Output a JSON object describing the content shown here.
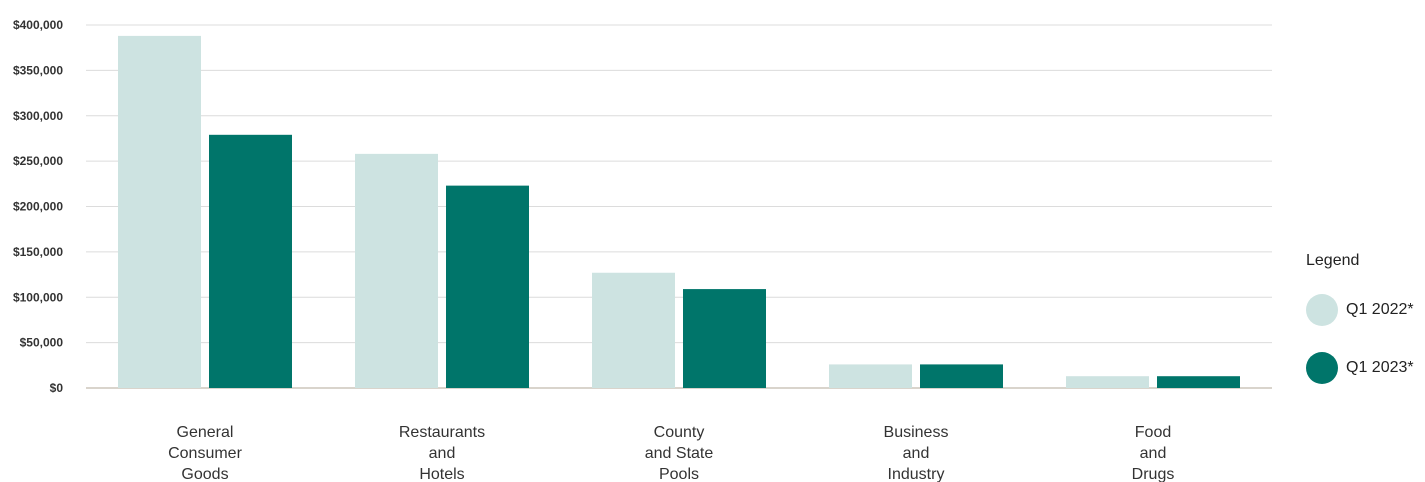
{
  "chart_data": {
    "type": "bar",
    "title": "",
    "xlabel": "",
    "ylabel": "",
    "ylim": [
      0,
      400000
    ],
    "yticks": [
      0,
      50000,
      100000,
      150000,
      200000,
      250000,
      300000,
      350000,
      400000
    ],
    "ytick_labels": [
      "$0",
      "$50,000",
      "$100,000",
      "$150,000",
      "$200,000",
      "$250,000",
      "$300,000",
      "$350,000",
      "$400,000"
    ],
    "grid": true,
    "legend_position": "right",
    "categories": [
      [
        "General",
        "Consumer",
        "Goods"
      ],
      [
        "Restaurants",
        "and",
        "Hotels"
      ],
      [
        "County",
        "and State",
        "Pools"
      ],
      [
        "Business",
        "and",
        "Industry"
      ],
      [
        "Food",
        "and",
        "Drugs"
      ]
    ],
    "series": [
      {
        "name": "Q1 2022*",
        "color": "#cde3e1",
        "values": [
          388000,
          258000,
          127000,
          26000,
          13000
        ]
      },
      {
        "name": "Q1 2023*",
        "color": "#00756a",
        "values": [
          279000,
          223000,
          109000,
          26000,
          13000
        ]
      }
    ]
  },
  "legend": {
    "title": "Legend"
  }
}
